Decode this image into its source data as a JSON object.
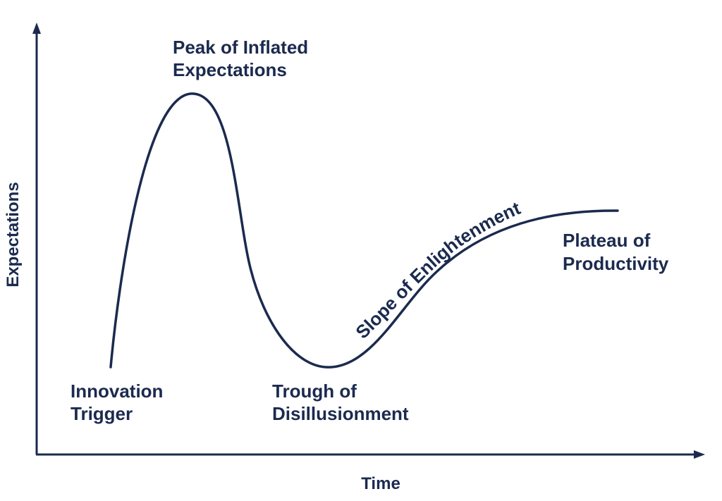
{
  "colors": {
    "ink": "#1b2a4e",
    "background": "#ffffff"
  },
  "axes": {
    "x_label": "Time",
    "y_label": "Expectations"
  },
  "phases": {
    "innovation_trigger": [
      "Innovation",
      "Trigger"
    ],
    "peak": [
      "Peak of Inflated",
      "Expectations"
    ],
    "trough": [
      "Trough of",
      "Disillusionment"
    ],
    "slope": "Slope of Enlightenment",
    "plateau": [
      "Plateau of",
      "Productivity"
    ]
  }
}
